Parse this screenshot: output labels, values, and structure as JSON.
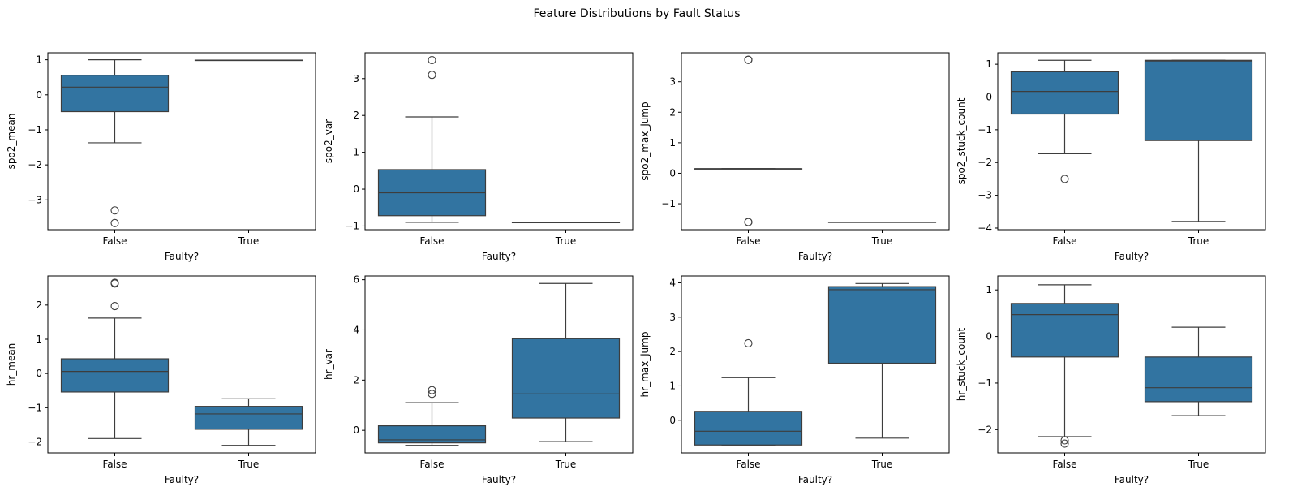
{
  "title": "Feature Distributions by Fault Status",
  "colors": {
    "box_fill": "#3274a1",
    "line": "#3d3d3d",
    "axes": "#000000",
    "background": "#ffffff"
  },
  "chart_data": [
    {
      "type": "box",
      "ylabel": "spo2_mean",
      "xlabel": "Faulty?",
      "categories": [
        "False",
        "True"
      ],
      "ylim": [
        -3.85,
        1.2
      ],
      "yticks": [
        1,
        0,
        -1,
        -2,
        -3
      ],
      "boxes": [
        {
          "whislo": -1.37,
          "q1": -0.48,
          "med": 0.22,
          "q3": 0.56,
          "whishi": 1.0,
          "fliers": [
            -3.3,
            -3.66
          ]
        },
        {
          "whislo": 0.99,
          "q1": 0.99,
          "med": 0.99,
          "q3": 0.99,
          "whishi": 0.99,
          "fliers": []
        }
      ]
    },
    {
      "type": "box",
      "ylabel": "spo2_var",
      "xlabel": "Faulty?",
      "categories": [
        "False",
        "True"
      ],
      "ylim": [
        -1.1,
        3.7
      ],
      "yticks": [
        3,
        2,
        1,
        0,
        -1
      ],
      "boxes": [
        {
          "whislo": -0.9,
          "q1": -0.72,
          "med": -0.1,
          "q3": 0.53,
          "whishi": 1.96,
          "fliers": [
            3.5,
            3.1
          ]
        },
        {
          "whislo": -0.9,
          "q1": -0.9,
          "med": -0.9,
          "q3": -0.9,
          "whishi": -0.9,
          "fliers": []
        }
      ]
    },
    {
      "type": "box",
      "ylabel": "spo2_max_jump",
      "xlabel": "Faulty?",
      "categories": [
        "False",
        "True"
      ],
      "ylim": [
        -1.85,
        3.95
      ],
      "yticks": [
        3,
        2,
        1,
        0,
        -1
      ],
      "boxes": [
        {
          "whislo": 0.15,
          "q1": 0.15,
          "med": 0.15,
          "q3": 0.15,
          "whishi": 0.15,
          "fliers": [
            3.72,
            3.72,
            -1.6,
            -1.6
          ]
        },
        {
          "whislo": -1.6,
          "q1": -1.6,
          "med": -1.6,
          "q3": -1.6,
          "whishi": -1.6,
          "fliers": []
        }
      ]
    },
    {
      "type": "box",
      "ylabel": "spo2_stuck_count",
      "xlabel": "Faulty?",
      "categories": [
        "False",
        "True"
      ],
      "ylim": [
        -4.05,
        1.35
      ],
      "yticks": [
        1,
        0,
        -1,
        -2,
        -3,
        -4
      ],
      "boxes": [
        {
          "whislo": -1.73,
          "q1": -0.52,
          "med": 0.17,
          "q3": 0.77,
          "whishi": 1.12,
          "fliers": [
            -2.5
          ]
        },
        {
          "whislo": -3.8,
          "q1": -1.33,
          "med": 1.1,
          "q3": 1.12,
          "whishi": 1.12,
          "fliers": []
        }
      ]
    },
    {
      "type": "box",
      "ylabel": "hr_mean",
      "xlabel": "Faulty?",
      "categories": [
        "False",
        "True"
      ],
      "ylim": [
        -2.32,
        2.85
      ],
      "yticks": [
        2,
        1,
        0,
        -1,
        -2
      ],
      "boxes": [
        {
          "whislo": -1.9,
          "q1": -0.54,
          "med": 0.06,
          "q3": 0.43,
          "whishi": 1.62,
          "fliers": [
            1.97,
            2.63,
            2.65
          ]
        },
        {
          "whislo": -2.1,
          "q1": -1.63,
          "med": -1.18,
          "q3": -0.96,
          "whishi": -0.74,
          "fliers": []
        }
      ]
    },
    {
      "type": "box",
      "ylabel": "hr_var",
      "xlabel": "Faulty?",
      "categories": [
        "False",
        "True"
      ],
      "ylim": [
        -0.9,
        6.15
      ],
      "yticks": [
        6,
        4,
        2,
        0
      ],
      "boxes": [
        {
          "whislo": -0.6,
          "q1": -0.5,
          "med": -0.38,
          "q3": 0.18,
          "whishi": 1.1,
          "fliers": [
            1.45,
            1.6
          ]
        },
        {
          "whislo": -0.45,
          "q1": 0.49,
          "med": 1.45,
          "q3": 3.65,
          "whishi": 5.85,
          "fliers": []
        }
      ]
    },
    {
      "type": "box",
      "ylabel": "hr_max_jump",
      "xlabel": "Faulty?",
      "categories": [
        "False",
        "True"
      ],
      "ylim": [
        -0.95,
        4.2
      ],
      "yticks": [
        4,
        3,
        2,
        1,
        0
      ],
      "boxes": [
        {
          "whislo": -0.72,
          "q1": -0.72,
          "med": -0.32,
          "q3": 0.26,
          "whishi": 1.24,
          "fliers": [
            2.24
          ]
        },
        {
          "whislo": -0.52,
          "q1": 1.66,
          "med": 3.8,
          "q3": 3.89,
          "whishi": 3.98,
          "fliers": []
        }
      ]
    },
    {
      "type": "box",
      "ylabel": "hr_stuck_count",
      "xlabel": "Faulty?",
      "categories": [
        "False",
        "True"
      ],
      "ylim": [
        -2.5,
        1.3
      ],
      "yticks": [
        1,
        0,
        -1,
        -2
      ],
      "boxes": [
        {
          "whislo": -2.15,
          "q1": -0.44,
          "med": 0.47,
          "q3": 0.71,
          "whishi": 1.11,
          "fliers": [
            -2.23,
            -2.3
          ]
        },
        {
          "whislo": -1.7,
          "q1": -1.4,
          "med": -1.1,
          "q3": -0.44,
          "whishi": 0.2,
          "fliers": []
        }
      ]
    }
  ]
}
